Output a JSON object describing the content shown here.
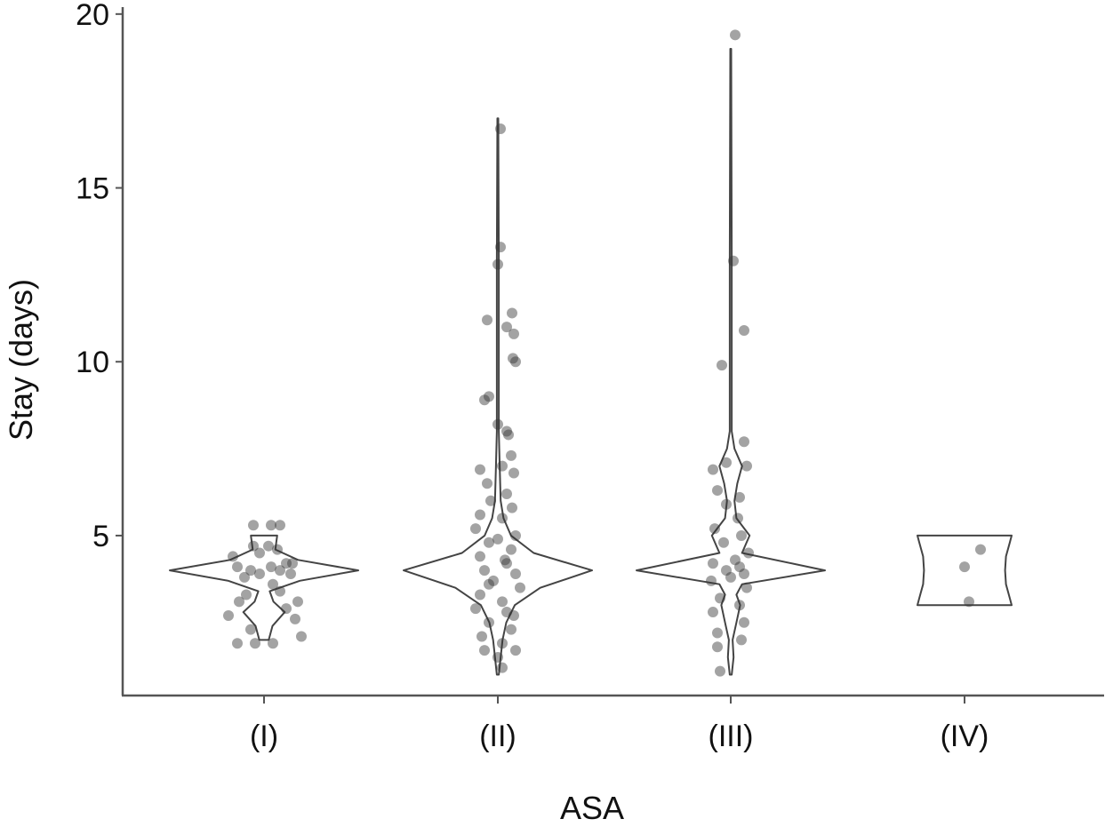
{
  "chart_data": {
    "type": "violin",
    "xlabel": "ASA",
    "ylabel": "Stay (days)",
    "ylim": [
      0.4,
      20.2
    ],
    "yticks": [
      "5",
      "10",
      "15",
      "20"
    ],
    "ytick_values": [
      5,
      10,
      15,
      20
    ],
    "grid": false,
    "legend": "none",
    "colors": {
      "outline": "#444444",
      "points": "#333333"
    },
    "categories": [
      "(I)",
      "(II)",
      "(III)",
      "(IV)"
    ],
    "groups": [
      {
        "category": "(I)",
        "min": 2,
        "max": 5,
        "profile": [
          [
            2,
            0.05
          ],
          [
            2.4,
            0.09
          ],
          [
            2.8,
            0.22
          ],
          [
            3.1,
            0.1
          ],
          [
            3.4,
            0.06
          ],
          [
            3.7,
            0.38
          ],
          [
            4,
            1.0
          ],
          [
            4.3,
            0.36
          ],
          [
            4.6,
            0.12
          ],
          [
            5,
            0.14
          ]
        ],
        "points": [
          [
            4,
            -0.15
          ],
          [
            3.9,
            -0.05
          ],
          [
            4.1,
            0.08
          ],
          [
            4,
            0.18
          ],
          [
            4.2,
            0.25
          ],
          [
            3.8,
            -0.22
          ],
          [
            3.9,
            0.3
          ],
          [
            4.1,
            -0.3
          ],
          [
            4.7,
            -0.12
          ],
          [
            4.6,
            0.15
          ],
          [
            4.7,
            0.05
          ],
          [
            4.2,
            0.32
          ],
          [
            3.1,
            -0.28
          ],
          [
            3.4,
            0.18
          ],
          [
            3.1,
            0.38
          ],
          [
            2.7,
            -0.4
          ],
          [
            2.6,
            0.35
          ],
          [
            2.1,
            0.42
          ],
          [
            1.9,
            -0.3
          ],
          [
            1.9,
            -0.1
          ],
          [
            1.9,
            0.1
          ],
          [
            5.3,
            -0.12
          ],
          [
            5.3,
            0.08
          ],
          [
            5.3,
            0.18
          ],
          [
            4.4,
            -0.35
          ],
          [
            2.3,
            -0.15
          ],
          [
            3.3,
            -0.2
          ],
          [
            3.6,
            0.1
          ],
          [
            2.9,
            0.25
          ],
          [
            4.5,
            -0.05
          ]
        ]
      },
      {
        "category": "(II)",
        "min": 1,
        "max": 17,
        "profile": [
          [
            1,
            0.01
          ],
          [
            1.5,
            0.03
          ],
          [
            2,
            0.05
          ],
          [
            2.5,
            0.09
          ],
          [
            3,
            0.18
          ],
          [
            3.5,
            0.45
          ],
          [
            4,
            1.0
          ],
          [
            4.5,
            0.38
          ],
          [
            5,
            0.14
          ],
          [
            5.5,
            0.06
          ],
          [
            6,
            0.03
          ],
          [
            7,
            0.02
          ],
          [
            8,
            0.01
          ],
          [
            10,
            0.01
          ],
          [
            13,
            0.01
          ],
          [
            17,
            0.005
          ]
        ],
        "points": [
          [
            16.7,
            0.03
          ],
          [
            13.3,
            0.03
          ],
          [
            12.8,
            0.0
          ],
          [
            11.2,
            -0.12
          ],
          [
            11.4,
            0.16
          ],
          [
            11.0,
            0.1
          ],
          [
            10.8,
            0.18
          ],
          [
            10.1,
            0.17
          ],
          [
            10.0,
            0.2
          ],
          [
            9.0,
            -0.1
          ],
          [
            8.9,
            -0.15
          ],
          [
            8.2,
            0.0
          ],
          [
            8.0,
            0.1
          ],
          [
            7.9,
            0.12
          ],
          [
            7.3,
            0.15
          ],
          [
            7.0,
            0.05
          ],
          [
            6.9,
            -0.2
          ],
          [
            6.8,
            0.18
          ],
          [
            6.5,
            -0.12
          ],
          [
            6.2,
            0.1
          ],
          [
            6.0,
            -0.08
          ],
          [
            5.8,
            0.16
          ],
          [
            5.6,
            -0.2
          ],
          [
            5.5,
            0.05
          ],
          [
            5.2,
            -0.25
          ],
          [
            5.0,
            0.2
          ],
          [
            4.8,
            -0.1
          ],
          [
            4.6,
            0.15
          ],
          [
            4.4,
            -0.2
          ],
          [
            4.2,
            0.1
          ],
          [
            4.0,
            -0.15
          ],
          [
            3.9,
            0.2
          ],
          [
            3.7,
            -0.05
          ],
          [
            3.5,
            0.25
          ],
          [
            3.3,
            -0.2
          ],
          [
            3.1,
            0.05
          ],
          [
            2.9,
            -0.25
          ],
          [
            2.7,
            0.18
          ],
          [
            2.5,
            -0.1
          ],
          [
            2.3,
            0.15
          ],
          [
            2.1,
            -0.18
          ],
          [
            1.9,
            0.05
          ],
          [
            1.7,
            -0.15
          ],
          [
            1.7,
            0.2
          ],
          [
            1.5,
            0.0
          ],
          [
            1.2,
            0.05
          ],
          [
            4.9,
            0.0
          ],
          [
            4.3,
            0.08
          ],
          [
            3.6,
            -0.1
          ],
          [
            2.8,
            0.1
          ]
        ]
      },
      {
        "category": "(III)",
        "min": 1,
        "max": 19,
        "profile": [
          [
            1,
            0.01
          ],
          [
            1.5,
            0.03
          ],
          [
            2,
            0.02
          ],
          [
            2.5,
            0.06
          ],
          [
            3,
            0.1
          ],
          [
            3.3,
            0.06
          ],
          [
            3.6,
            0.12
          ],
          [
            4,
            1.0
          ],
          [
            4.5,
            0.12
          ],
          [
            5,
            0.2
          ],
          [
            5.5,
            0.06
          ],
          [
            6,
            0.04
          ],
          [
            6.5,
            0.07
          ],
          [
            7,
            0.12
          ],
          [
            7.5,
            0.04
          ],
          [
            8,
            0.01
          ],
          [
            10,
            0.01
          ],
          [
            13,
            0.01
          ],
          [
            19,
            0.005
          ]
        ],
        "points": [
          [
            19.4,
            0.05
          ],
          [
            12.9,
            0.03
          ],
          [
            10.9,
            0.15
          ],
          [
            9.9,
            -0.1
          ],
          [
            7.7,
            0.15
          ],
          [
            7.1,
            -0.05
          ],
          [
            7.0,
            0.18
          ],
          [
            6.9,
            -0.2
          ],
          [
            6.3,
            -0.15
          ],
          [
            6.1,
            0.1
          ],
          [
            5.9,
            -0.05
          ],
          [
            5.5,
            0.08
          ],
          [
            5.2,
            -0.18
          ],
          [
            5.0,
            0.12
          ],
          [
            4.8,
            -0.08
          ],
          [
            4.5,
            0.2
          ],
          [
            4.2,
            -0.2
          ],
          [
            4.1,
            0.1
          ],
          [
            4.0,
            -0.05
          ],
          [
            3.9,
            0.15
          ],
          [
            3.7,
            -0.22
          ],
          [
            3.5,
            0.18
          ],
          [
            3.2,
            -0.12
          ],
          [
            3.0,
            0.1
          ],
          [
            2.8,
            -0.2
          ],
          [
            2.5,
            0.15
          ],
          [
            2.2,
            -0.15
          ],
          [
            2.0,
            0.12
          ],
          [
            1.8,
            -0.15
          ],
          [
            1.1,
            -0.12
          ],
          [
            4.3,
            0.05
          ],
          [
            3.8,
            0.0
          ]
        ]
      },
      {
        "category": "(IV)",
        "min": 3,
        "max": 5,
        "profile": [
          [
            3,
            0.5
          ],
          [
            3.2,
            0.48
          ],
          [
            3.6,
            0.44
          ],
          [
            4,
            0.43
          ],
          [
            4.4,
            0.44
          ],
          [
            4.8,
            0.48
          ],
          [
            5,
            0.5
          ]
        ],
        "points": [
          [
            4.6,
            0.18
          ],
          [
            4.1,
            0.0
          ],
          [
            3.1,
            0.05
          ]
        ]
      }
    ]
  }
}
